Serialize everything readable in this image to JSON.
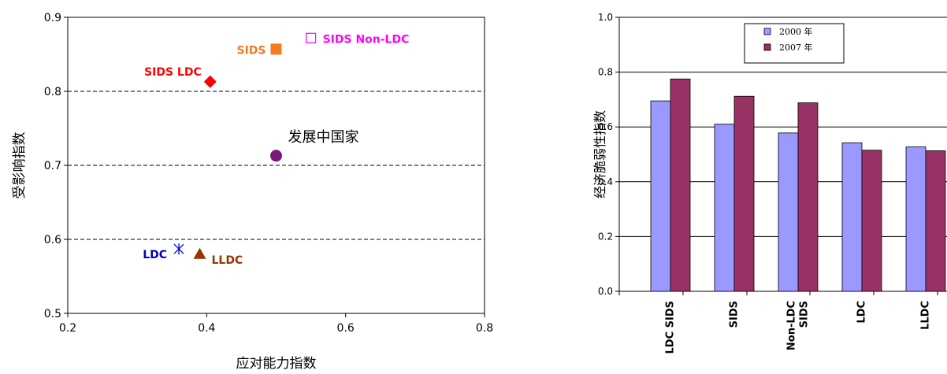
{
  "chart_data": [
    {
      "type": "scatter",
      "xlabel": "应对能力指数",
      "ylabel": "受影响指数",
      "xlim": [
        0.2,
        0.8
      ],
      "ylim": [
        0.5,
        0.9
      ],
      "xticks": [
        "0.2",
        "0.4",
        "0.6",
        "0.8"
      ],
      "yticks": [
        "0.5",
        "0.6",
        "0.7",
        "0.8",
        "0.9"
      ],
      "gridlines_dashed": [
        0.6,
        0.7,
        0.8
      ],
      "points": [
        {
          "label": "SIDS Non-LDC",
          "x": 0.55,
          "y": 0.872,
          "marker": "open-square",
          "color": "#ff00ff"
        },
        {
          "label": "SIDS",
          "x": 0.5,
          "y": 0.857,
          "marker": "square",
          "color": "#f47b20"
        },
        {
          "label": "SIDS LDC",
          "x": 0.405,
          "y": 0.813,
          "marker": "diamond",
          "color": "#ff0000"
        },
        {
          "label": "发展中国家",
          "x": 0.5,
          "y": 0.713,
          "marker": "circle",
          "color": "#7a1a7a"
        },
        {
          "label": "LDC",
          "x": 0.36,
          "y": 0.587,
          "marker": "asterisk",
          "color": "#0000cc"
        },
        {
          "label": "LLDC",
          "x": 0.39,
          "y": 0.58,
          "marker": "triangle",
          "color": "#993300"
        }
      ]
    },
    {
      "type": "bar",
      "ylabel": "经济脆弱性指数",
      "ylim": [
        0,
        1.0
      ],
      "yticks": [
        "0.0",
        "0.2",
        "0.4",
        "0.6",
        "0.8",
        "1.0"
      ],
      "categories": [
        "LDC SIDS",
        "SIDS",
        "Non-LDC SIDS",
        "LDC",
        "LLDC"
      ],
      "legend_position": "top",
      "series": [
        {
          "name": "2000 年",
          "color": "#9999ff",
          "values": [
            0.695,
            0.61,
            0.578,
            0.542,
            0.527
          ]
        },
        {
          "name": "2007 年",
          "color": "#993366",
          "values": [
            0.775,
            0.712,
            0.688,
            0.515,
            0.513
          ]
        }
      ]
    }
  ]
}
